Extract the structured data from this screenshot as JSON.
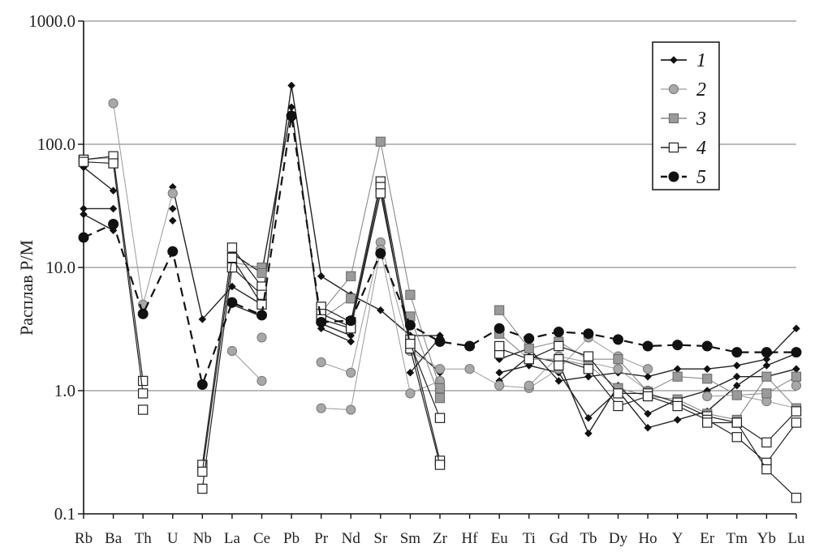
{
  "chart_data": {
    "type": "line",
    "ylabel": "Расплав Р/М",
    "xlabel": "",
    "yscale": "log",
    "ylim": [
      0.1,
      1000
    ],
    "y_ticks": [
      "0.1",
      "1.0",
      "10.0",
      "100.0",
      "1000.0"
    ],
    "grid": "horizontal major lines",
    "legend_position": "top-right",
    "categories": [
      "Rb",
      "Ba",
      "Th",
      "U",
      "Nb",
      "La",
      "Ce",
      "Pb",
      "Pr",
      "Nd",
      "Sr",
      "Sm",
      "Zr",
      "Hf",
      "Eu",
      "Ti",
      "Gd",
      "Tb",
      "Dy",
      "Ho",
      "Y",
      "Er",
      "Tm",
      "Yb",
      "Lu"
    ],
    "series": [
      {
        "name": "1",
        "group": 1,
        "values": [
          65,
          42,
          null,
          45,
          3.8,
          7,
          5,
          300,
          8.5,
          6,
          4.5,
          2.8,
          2.8,
          null,
          1.8,
          2.2,
          1.2,
          1.3,
          1.4,
          1.3,
          1.5,
          1.5,
          1.6,
          1.8,
          3.2
        ]
      },
      {
        "name": "",
        "group": 1,
        "values": [
          30,
          30,
          null,
          30,
          null,
          13,
          9,
          200,
          3.2,
          2.5,
          null,
          1.4,
          2.7,
          null,
          1.4,
          1.6,
          1.4,
          0.6,
          1.0,
          0.5,
          0.58,
          0.68,
          1.1,
          1.6,
          2.0
        ]
      },
      {
        "name": "",
        "group": 1,
        "values": [
          27,
          20,
          null,
          24,
          null,
          5,
          4,
          null,
          3.5,
          2.8,
          null,
          2.3,
          1.4,
          null,
          1.2,
          1.9,
          1.7,
          0.45,
          1.1,
          0.65,
          0.85,
          1.0,
          1.3,
          1.3,
          1.5
        ]
      },
      {
        "name": "2",
        "group": 2,
        "values": [
          null,
          215,
          5,
          40,
          null,
          2.1,
          1.2,
          null,
          1.7,
          1.4,
          16,
          2.1,
          1.5,
          1.5,
          1.1,
          1.05,
          1.5,
          2.7,
          1.9,
          1.5,
          null,
          0.9,
          0.92,
          0.82,
          0.72
        ]
      },
      {
        "name": "",
        "group": 2,
        "values": [
          null,
          null,
          null,
          null,
          null,
          null,
          2.7,
          null,
          0.72,
          0.7,
          14,
          0.95,
          1.2,
          null,
          null,
          1.1,
          1.9,
          1.7,
          1.5,
          1.0,
          null,
          null,
          null,
          null,
          1.1
        ]
      },
      {
        "name": "3",
        "group": 3,
        "values": [
          75,
          78,
          null,
          null,
          null,
          11,
          10,
          null,
          4.3,
          8.5,
          105,
          6,
          1.05,
          null,
          4.5,
          2.2,
          2.5,
          1.8,
          1.8,
          0.98,
          1.3,
          1.25,
          0.92,
          0.95,
          1.3
        ]
      },
      {
        "name": "",
        "group": 3,
        "values": [
          null,
          72,
          null,
          null,
          null,
          null,
          9,
          null,
          3.8,
          5.6,
          null,
          4,
          0.87,
          null,
          2.9,
          1.8,
          1.8,
          1.6,
          1.05,
          0.9,
          0.85,
          0.65,
          0.58,
          1.3,
          0.72
        ]
      },
      {
        "name": "4",
        "group": 4,
        "values": [
          75,
          80,
          1.2,
          null,
          0.25,
          14.5,
          7,
          null,
          4.8,
          3.6,
          50,
          2.6,
          0.27,
          null,
          2.2,
          1.8,
          2.3,
          1.9,
          0.95,
          0.95,
          0.8,
          0.62,
          0.55,
          0.38,
          0.68
        ]
      },
      {
        "name": "",
        "group": 4,
        "values": [
          72,
          70,
          0.95,
          null,
          0.16,
          10,
          6,
          null,
          4.2,
          3.3,
          45,
          2.2,
          0.25,
          null,
          2.0,
          null,
          1.8,
          1.5,
          0.75,
          0.9,
          0.75,
          0.58,
          0.42,
          0.26,
          0.55
        ]
      },
      {
        "name": "",
        "group": 4,
        "values": [
          null,
          null,
          0.7,
          null,
          0.22,
          12,
          5,
          null,
          3.8,
          3.2,
          40,
          2.4,
          0.6,
          null,
          2.3,
          null,
          1.6,
          null,
          null,
          null,
          null,
          0.55,
          0.55,
          0.23,
          0.135
        ]
      },
      {
        "name": "5",
        "group": 5,
        "values": [
          17.5,
          22.5,
          4.2,
          13.5,
          1.12,
          5.2,
          4.1,
          170,
          3.6,
          3.7,
          13,
          3.4,
          2.5,
          2.3,
          3.2,
          2.65,
          3.0,
          2.9,
          2.6,
          2.3,
          2.35,
          2.3,
          2.05,
          2.05,
          2.05
        ]
      }
    ]
  }
}
